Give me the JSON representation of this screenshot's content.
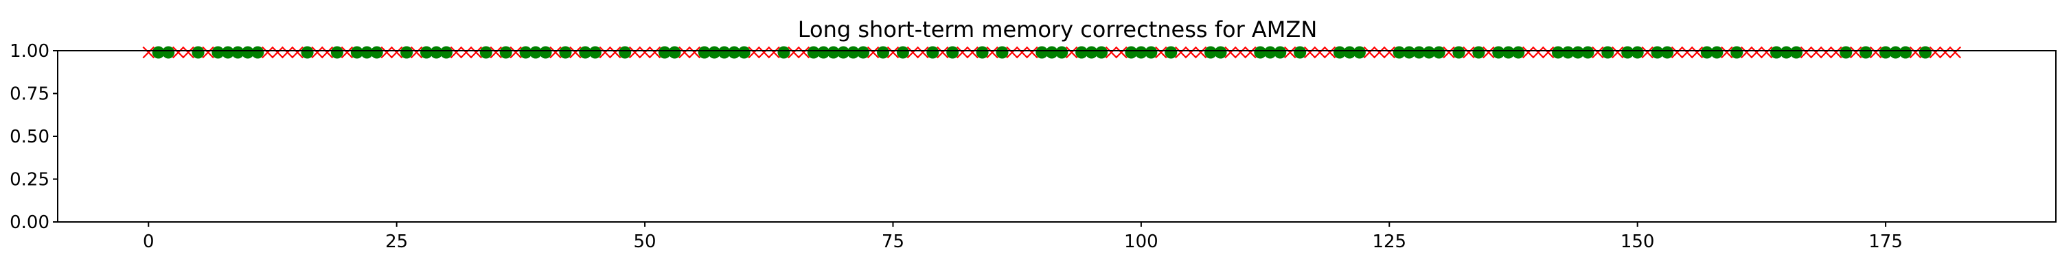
{
  "chart_data": {
    "type": "scatter",
    "title": "Long short-term memory correctness for AMZN",
    "xlabel": "",
    "ylabel": "",
    "xlim": [
      -9.15,
      192.15
    ],
    "ylim": [
      0.0,
      1.0
    ],
    "xticks": [
      0,
      25,
      50,
      75,
      100,
      125,
      150,
      175
    ],
    "yticks": [
      0.0,
      0.25,
      0.5,
      0.75,
      1.0
    ],
    "ytick_labels": [
      "0.00",
      "0.25",
      "0.50",
      "0.75",
      "1.00"
    ],
    "grid": false,
    "marker_y": 0.99,
    "correct_color": "#008000",
    "incorrect_color": "#ff0000",
    "correct_marker": "circle",
    "incorrect_marker": "x",
    "x_count": 183,
    "correct_x": [
      1,
      2,
      5,
      7,
      8,
      9,
      10,
      11,
      16,
      19,
      21,
      22,
      23,
      26,
      28,
      29,
      30,
      34,
      36,
      38,
      39,
      40,
      42,
      44,
      45,
      48,
      52,
      53,
      56,
      57,
      58,
      59,
      60,
      64,
      67,
      68,
      69,
      70,
      71,
      72,
      74,
      76,
      79,
      81,
      84,
      86,
      90,
      91,
      92,
      94,
      95,
      96,
      99,
      100,
      101,
      103,
      107,
      108,
      112,
      113,
      114,
      116,
      120,
      121,
      122,
      126,
      127,
      128,
      129,
      130,
      132,
      134,
      136,
      137,
      138,
      142,
      143,
      144,
      145,
      147,
      149,
      150,
      152,
      153,
      157,
      158,
      160,
      164,
      165,
      166,
      171,
      173,
      175,
      176,
      177,
      179
    ]
  }
}
